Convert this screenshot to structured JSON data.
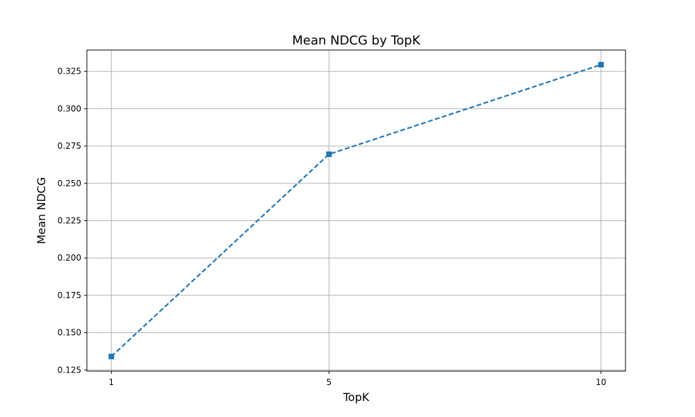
{
  "chart_data": {
    "type": "line",
    "title": "Mean NDCG by TopK",
    "xlabel": "TopK",
    "ylabel": "Mean NDCG",
    "x": [
      1,
      5,
      10
    ],
    "x_tick_labels": [
      "1",
      "5",
      "10"
    ],
    "series": [
      {
        "values": [
          0.134,
          0.2695,
          0.3295
        ],
        "color": "#1f77b4",
        "line_style": "dashed",
        "marker": "square"
      }
    ],
    "xlim": [
      0.55,
      10.45
    ],
    "ylim": [
      0.1242,
      0.3393
    ],
    "y_ticks": [
      0.125,
      0.15,
      0.175,
      0.2,
      0.225,
      0.25,
      0.275,
      0.3,
      0.325
    ],
    "y_tick_labels": [
      "0.125",
      "0.150",
      "0.175",
      "0.200",
      "0.225",
      "0.250",
      "0.275",
      "0.300",
      "0.325"
    ],
    "grid": true,
    "legend": "none"
  }
}
